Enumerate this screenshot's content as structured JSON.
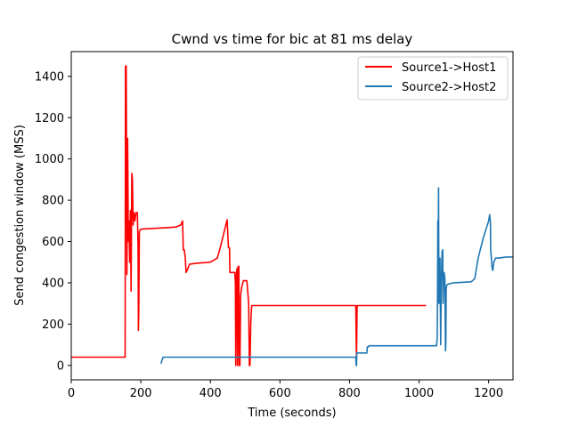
{
  "chart_data": {
    "type": "line",
    "title": "Cwnd vs time for bic at 81 ms delay",
    "xlabel": "Time (seconds)",
    "ylabel": "Send congestion window (MSS)",
    "xlim": [
      0,
      1270
    ],
    "ylim": [
      -70,
      1520
    ],
    "xticks": [
      0,
      200,
      400,
      600,
      800,
      1000,
      1200
    ],
    "yticks": [
      0,
      200,
      400,
      600,
      800,
      1000,
      1200,
      1400
    ],
    "grid": false,
    "legend_position": "top-right",
    "series": [
      {
        "name": "Source1->Host1",
        "color": "#ff0000",
        "x": [
          0,
          150,
          155,
          156,
          158,
          160,
          162,
          164,
          166,
          168,
          170,
          172,
          174,
          176,
          178,
          180,
          183,
          186,
          190,
          192,
          193,
          194,
          196,
          200,
          250,
          300,
          315,
          320,
          322,
          325,
          328,
          330,
          333,
          340,
          360,
          400,
          420,
          430,
          440,
          448,
          452,
          455,
          456,
          470,
          472,
          473,
          475,
          477,
          478,
          480,
          482,
          483,
          485,
          487,
          490,
          495,
          500,
          505,
          510,
          512,
          514,
          516,
          518,
          519,
          520,
          530,
          600,
          700,
          816,
          817,
          818,
          819,
          820,
          822,
          900,
          1000,
          1020
        ],
        "y": [
          40,
          40,
          40,
          1450,
          1450,
          440,
          1100,
          600,
          700,
          500,
          750,
          360,
          930,
          900,
          680,
          740,
          700,
          740,
          740,
          580,
          170,
          250,
          650,
          660,
          665,
          670,
          680,
          700,
          560,
          560,
          520,
          450,
          460,
          490,
          495,
          500,
          520,
          580,
          650,
          705,
          570,
          570,
          450,
          450,
          400,
          0,
          450,
          470,
          0,
          480,
          480,
          0,
          0,
          340,
          380,
          410,
          410,
          410,
          300,
          0,
          0,
          200,
          270,
          290,
          290,
          290,
          290,
          290,
          290,
          290,
          290,
          130,
          40,
          290,
          290,
          290,
          290
        ]
      },
      {
        "name": "Source2->Host2",
        "color": "#1f77b4",
        "x": [
          257,
          258,
          262,
          264,
          300,
          500,
          700,
          816,
          818,
          819,
          820,
          821,
          822,
          824,
          850,
          851,
          855,
          856,
          900,
          1000,
          1050,
          1052,
          1053,
          1054,
          1055,
          1056,
          1057,
          1058,
          1059,
          1060,
          1062,
          1064,
          1066,
          1068,
          1069,
          1070,
          1071,
          1072,
          1074,
          1076,
          1077,
          1078,
          1080,
          1085,
          1100,
          1150,
          1160,
          1170,
          1185,
          1200,
          1203,
          1205,
          1206,
          1210,
          1212,
          1215,
          1220,
          1230,
          1250,
          1270
        ],
        "y": [
          10,
          10,
          30,
          40,
          40,
          40,
          40,
          40,
          40,
          0,
          0,
          60,
          60,
          60,
          60,
          90,
          90,
          95,
          95,
          95,
          95,
          130,
          380,
          700,
          450,
          860,
          300,
          400,
          350,
          520,
          100,
          400,
          550,
          560,
          300,
          380,
          430,
          450,
          420,
          70,
          100,
          380,
          390,
          395,
          400,
          405,
          420,
          520,
          620,
          700,
          730,
          700,
          560,
          470,
          460,
          500,
          520,
          520,
          525,
          525
        ]
      }
    ]
  }
}
